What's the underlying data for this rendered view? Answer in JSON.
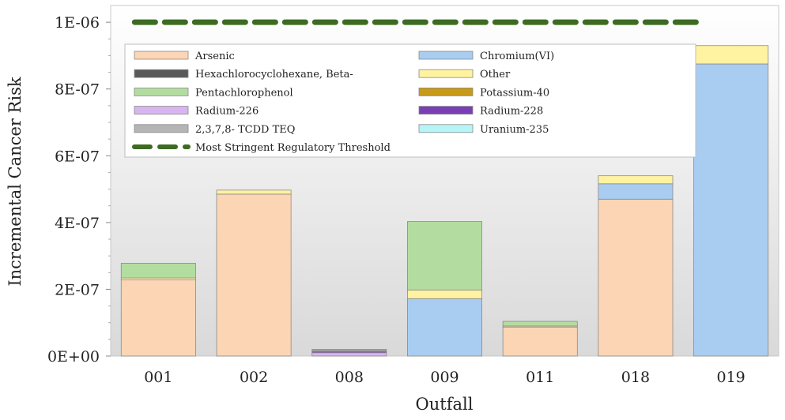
{
  "chart_data": {
    "type": "bar",
    "stacked": true,
    "title": "",
    "xlabel": "Outfall",
    "ylabel": "Incremental Cancer Risk",
    "categories": [
      "001",
      "002",
      "008",
      "009",
      "011",
      "018",
      "019"
    ],
    "ylim": [
      0,
      1.05e-06
    ],
    "yticks": [
      0,
      2e-07,
      4e-07,
      6e-07,
      8e-07,
      1e-06
    ],
    "ytick_labels": [
      "0E+00",
      "2E-07",
      "4E-07",
      "6E-07",
      "8E-07",
      "1E-06"
    ],
    "grid": false,
    "legend_position": "top-left",
    "series": [
      {
        "name": "Arsenic",
        "color": "#fcd5b4",
        "values": [
          2.28e-07,
          4.85e-07,
          0,
          0,
          8.7e-08,
          4.7e-07,
          0
        ]
      },
      {
        "name": "Chromium(VI)",
        "color": "#a9cdf0",
        "values": [
          0,
          0,
          0,
          1.72e-07,
          0,
          4.6e-08,
          8.75e-07
        ]
      },
      {
        "name": "Hexachlorocyclohexane, Beta-",
        "color": "#595959",
        "values": [
          0,
          0,
          0,
          0,
          0,
          0,
          0
        ]
      },
      {
        "name": "Other",
        "color": "#fff2a0",
        "values": [
          6e-09,
          1.2e-08,
          0,
          2.6e-08,
          3e-09,
          2.4e-08,
          5.5e-08
        ]
      },
      {
        "name": "Pentachlorophenol",
        "color": "#b3dda0",
        "values": [
          4.4e-08,
          0,
          0,
          2.05e-07,
          1.4e-08,
          0,
          0
        ]
      },
      {
        "name": "Potassium-40",
        "color": "#c79a1a",
        "values": [
          0,
          0,
          0,
          0,
          0,
          0,
          0
        ]
      },
      {
        "name": "Radium-226",
        "color": "#d8b4f0",
        "values": [
          0,
          0,
          1e-08,
          0,
          0,
          0,
          0
        ]
      },
      {
        "name": "Radium-228",
        "color": "#7b3fb5",
        "values": [
          0,
          0,
          4e-09,
          0,
          0,
          0,
          0
        ]
      },
      {
        "name": "2,3,7,8- TCDD TEQ",
        "color": "#b5b5b5",
        "values": [
          0,
          0,
          4e-09,
          0,
          0,
          0,
          0
        ]
      },
      {
        "name": "Uranium-235",
        "color": "#b4f5f8",
        "values": [
          0,
          0,
          2e-09,
          0,
          0,
          0,
          0
        ]
      }
    ],
    "threshold": {
      "name": "Most Stringent Regulatory Threshold",
      "value": 1e-06,
      "color": "#3d6b22",
      "style": "dashed"
    },
    "legend_order": [
      "Arsenic",
      "Chromium(VI)",
      "Hexachlorocyclohexane, Beta-",
      "Other",
      "Pentachlorophenol",
      "Potassium-40",
      "Radium-226",
      "Radium-228",
      "2,3,7,8- TCDD TEQ",
      "Uranium-235",
      "Most Stringent Regulatory Threshold"
    ]
  }
}
